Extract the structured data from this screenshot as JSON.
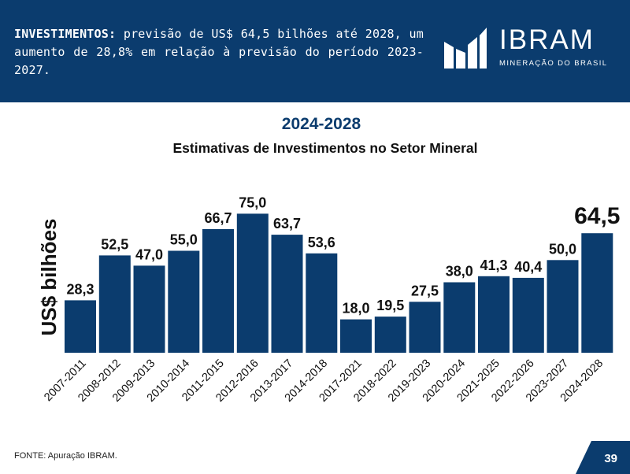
{
  "header": {
    "lead": "INVESTIMENTOS:",
    "body": " previsão de US$ 64,5 bilhões até 2028, um aumento de 28,8% em relação à previsão do período 2023-2027."
  },
  "logo": {
    "name": "IBRAM",
    "tagline": "MINERAÇÃO DO BRASIL"
  },
  "footer": {
    "source": "FONTE: Apuração IBRAM.",
    "page_number": "39"
  },
  "colors": {
    "bar": "#0b3c6e",
    "title": "#0b3c6e",
    "header_bg": "#0b3c6e"
  },
  "chart_data": {
    "type": "bar",
    "title": "2024-2028",
    "subtitle": "Estimativas de Investimentos no Setor Mineral",
    "xlabel": "",
    "ylabel": "US$ bilhões",
    "ylim": [
      0,
      80
    ],
    "grid": false,
    "legend": "none",
    "categories": [
      "2007-2011",
      "2008-2012",
      "2009-2013",
      "2010-2014",
      "2011-2015",
      "2012-2016",
      "2013-2017",
      "2014-2018",
      "2017-2021",
      "2018-2022",
      "2019-2023",
      "2020-2024",
      "2021-2025",
      "2022-2026",
      "2023-2027",
      "2024-2028"
    ],
    "values": [
      28.3,
      52.5,
      47.0,
      55.0,
      66.7,
      75.0,
      63.7,
      53.6,
      18.0,
      19.5,
      27.5,
      38.0,
      41.3,
      40.4,
      50.0,
      64.5
    ],
    "value_labels": [
      "28,3",
      "52,5",
      "47,0",
      "55,0",
      "66,7",
      "75,0",
      "63,7",
      "53,6",
      "18,0",
      "19,5",
      "27,5",
      "38,0",
      "41,3",
      "40,4",
      "50,0",
      "64,5"
    ],
    "highlight_index": 15
  }
}
